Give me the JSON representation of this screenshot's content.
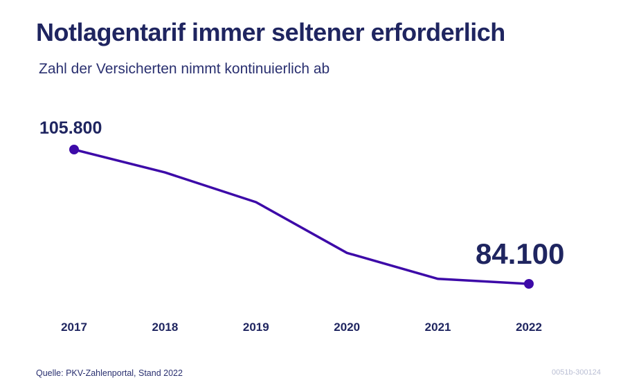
{
  "header": {
    "title": "Notlagentarif immer seltener erforderlich",
    "subtitle": "Zahl der Versicherten nimmt kontinuierlich ab"
  },
  "footer": {
    "source": "Quelle: PKV-Zahlenportal, Stand 2022",
    "code": "0051b-300124"
  },
  "colors": {
    "line": "#3d0aa8",
    "text": "#1f2560"
  },
  "chart_data": {
    "type": "line",
    "title": "Notlagentarif immer seltener erforderlich",
    "subtitle": "Zahl der Versicherten nimmt kontinuierlich ab",
    "categories": [
      "2017",
      "2018",
      "2019",
      "2020",
      "2021",
      "2022"
    ],
    "values": [
      105800,
      102100,
      97300,
      89100,
      84900,
      84100
    ],
    "value_labels": [
      {
        "index": 0,
        "text": "105.800"
      },
      {
        "index": 5,
        "text": "84.100"
      }
    ],
    "markers": [
      0,
      5
    ],
    "ylim": [
      79000,
      111000
    ],
    "grid": false,
    "legend": "none"
  }
}
